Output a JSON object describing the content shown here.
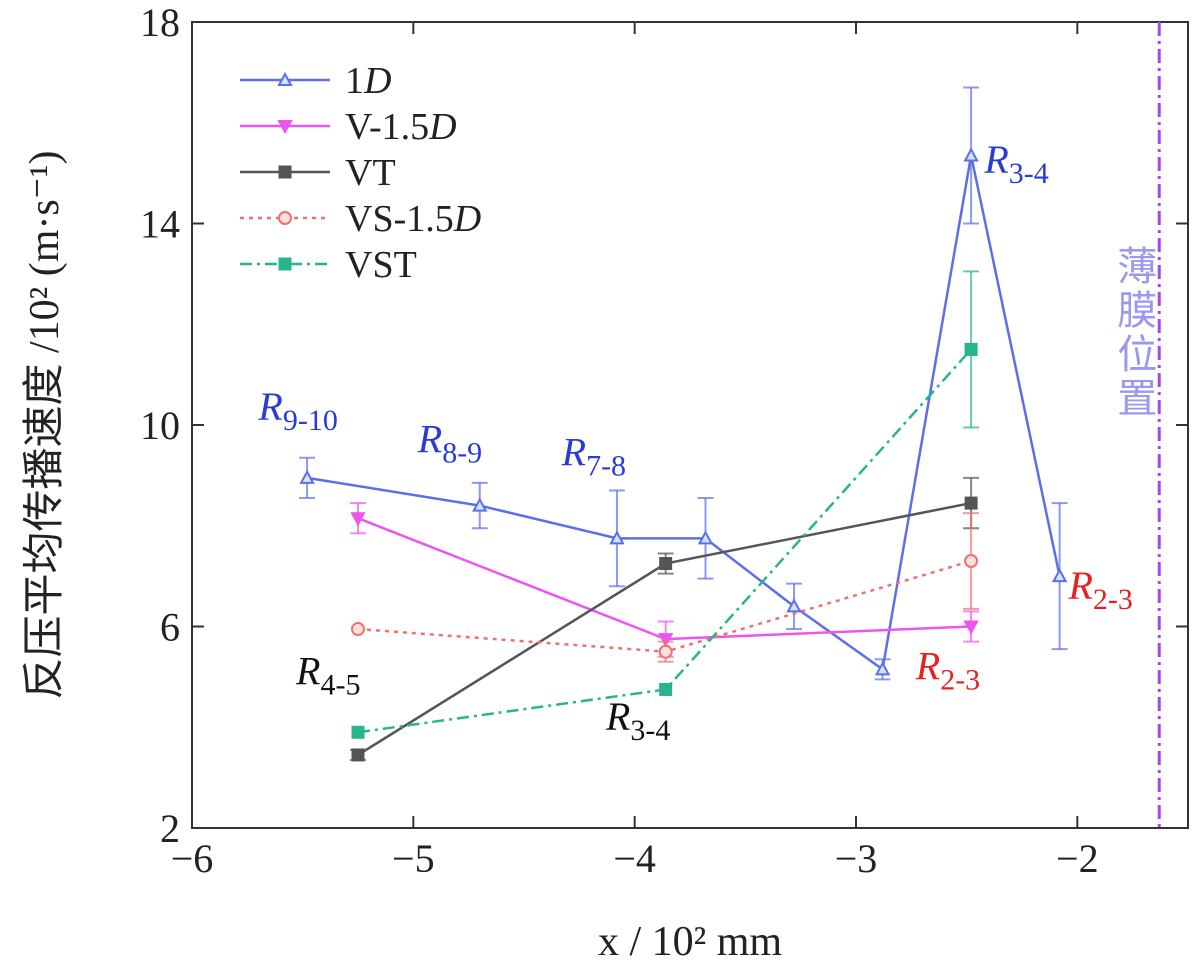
{
  "chart_data": {
    "type": "line",
    "xlabel": "x / 10² mm",
    "ylabel": "反压平均传播速度 /10² (m·s⁻¹)",
    "xlim": [
      -6,
      -1.5
    ],
    "ylim": [
      2,
      18
    ],
    "xticks": [
      -6,
      -5,
      -4,
      -3,
      -2
    ],
    "yticks": [
      2,
      6,
      10,
      14,
      18
    ],
    "xtick_labels": [
      "−6",
      "−5",
      "−4",
      "−3",
      "−2"
    ],
    "ytick_labels": [
      "2",
      "6",
      "10",
      "14",
      "18"
    ],
    "grid": false,
    "legend_position": "top-left",
    "series": [
      {
        "name": "1D",
        "color": "#5d6ee8",
        "style": "solid",
        "marker": "triangle-up",
        "x": [
          -5.48,
          -4.7,
          -4.08,
          -3.68,
          -3.28,
          -2.88,
          -2.48,
          -2.08
        ],
        "y": [
          8.95,
          8.4,
          7.75,
          7.75,
          6.4,
          5.15,
          15.35,
          7.0
        ],
        "err": [
          0.4,
          0.45,
          0.95,
          0.8,
          0.45,
          0.2,
          1.35,
          1.45
        ]
      },
      {
        "name": "V-1.5D",
        "color": "#ee55ee",
        "style": "solid",
        "marker": "triangle-down",
        "x": [
          -5.25,
          -3.86,
          -2.48
        ],
        "y": [
          8.15,
          5.75,
          6.0
        ],
        "err": [
          0.3,
          0.35,
          0.3
        ]
      },
      {
        "name": "VT",
        "color": "#555555",
        "style": "solid",
        "marker": "square",
        "x": [
          -5.25,
          -3.86,
          -2.48
        ],
        "y": [
          3.45,
          7.25,
          8.45
        ],
        "err": [
          0.1,
          0.2,
          0.5
        ]
      },
      {
        "name": "VS-1.5D",
        "color": "#f07070",
        "style": "dotted",
        "marker": "circle",
        "x": [
          -5.25,
          -3.86,
          -2.48
        ],
        "y": [
          5.95,
          5.5,
          7.3
        ],
        "err": [
          0.0,
          0.2,
          0.95
        ]
      },
      {
        "name": "VST",
        "color": "#28b48c",
        "style": "dashdot",
        "marker": "square",
        "x": [
          -5.25,
          -3.86,
          -2.48
        ],
        "y": [
          3.9,
          4.75,
          11.5
        ],
        "err": [
          0.0,
          0.0,
          1.55
        ]
      }
    ],
    "legend": [
      {
        "main": "1",
        "italic": "D"
      },
      {
        "main": "V-1.5",
        "italic": "D"
      },
      {
        "main": "VT",
        "italic": ""
      },
      {
        "main": "VS-1.5",
        "italic": "D"
      },
      {
        "main": "VST",
        "italic": ""
      }
    ],
    "annotations": [
      {
        "id": "ann-r9-10",
        "label": "R",
        "sub": "9-10",
        "x": -5.7,
        "y": 10.1,
        "color": "#2a3cd8"
      },
      {
        "id": "ann-r8-9",
        "label": "R",
        "sub": "8-9",
        "x": -4.98,
        "y": 9.45,
        "color": "#2a3cd8"
      },
      {
        "id": "ann-r7-8",
        "label": "R",
        "sub": "7-8",
        "x": -4.33,
        "y": 9.2,
        "color": "#2a3cd8"
      },
      {
        "id": "ann-r3-4-top",
        "label": "R",
        "sub": "3-4",
        "x": -2.42,
        "y": 15.0,
        "color": "#2a3cd8"
      },
      {
        "id": "ann-r2-3-right",
        "label": "R",
        "sub": "2-3",
        "x": -2.04,
        "y": 6.55,
        "color": "#e82020"
      },
      {
        "id": "ann-r2-3-mid",
        "label": "R",
        "sub": "2-3",
        "x": -2.73,
        "y": 4.95,
        "color": "#e82020"
      },
      {
        "id": "ann-r4-5",
        "label": "R",
        "sub": "4-5",
        "x": -5.53,
        "y": 4.85,
        "color": "#111111"
      },
      {
        "id": "ann-r3-4-bottom",
        "label": "R",
        "sub": "3-4",
        "x": -4.13,
        "y": 3.95,
        "color": "#111111"
      }
    ],
    "vertical_line": {
      "x": -1.63,
      "label": "薄膜位置",
      "color": "#aa44ee"
    }
  }
}
